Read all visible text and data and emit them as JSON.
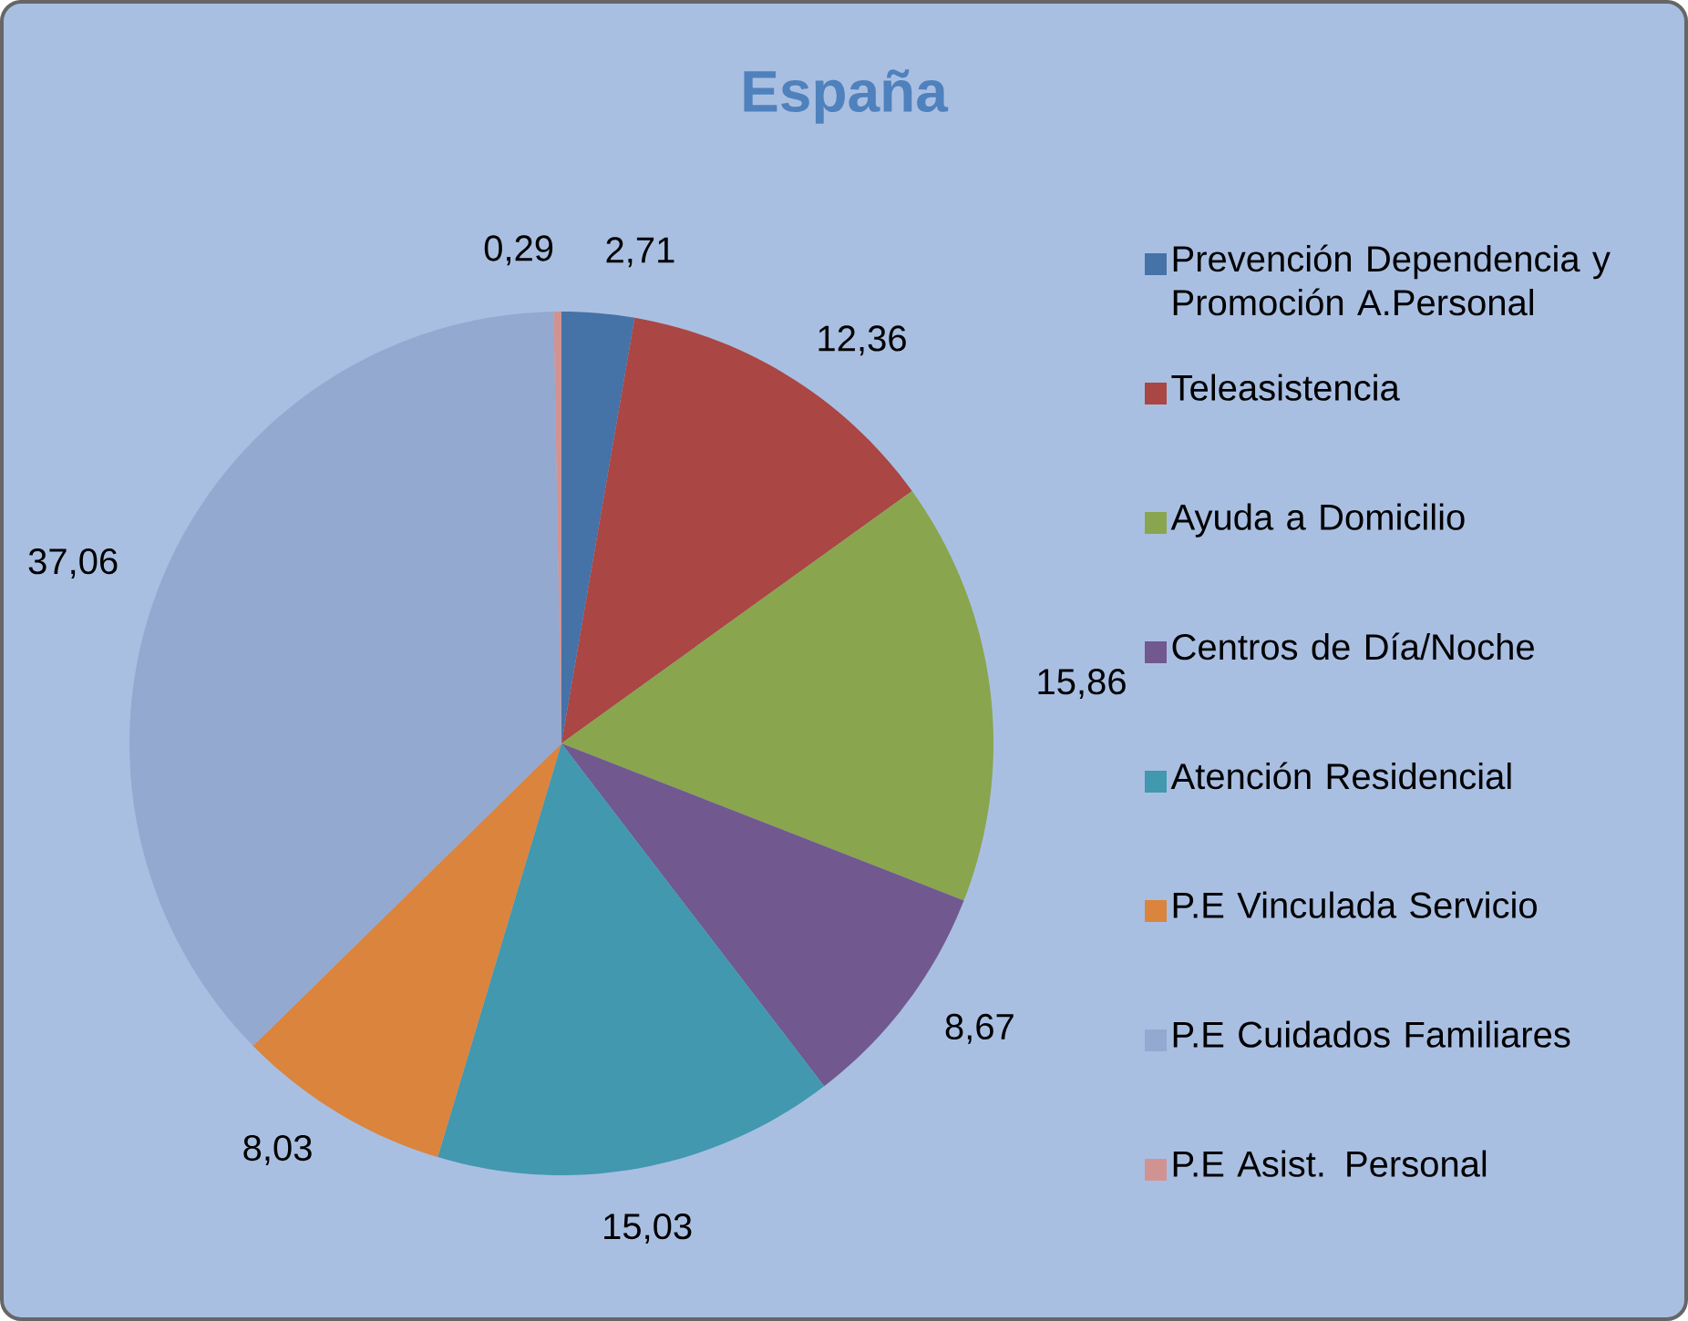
{
  "chart_data": {
    "type": "pie",
    "title": "España",
    "categories": [
      "Prevención Dependencia y Promoción A.Personal",
      "Teleasistencia",
      "Ayuda a Domicilio",
      "Centros de Día/Noche",
      "Atención Residencial",
      "P.E Vinculada Servicio",
      "P.E Cuidados  Familiares",
      "P.E Asist.    Personal"
    ],
    "values": [
      2.71,
      12.36,
      15.86,
      8.67,
      15.03,
      8.03,
      37.06,
      0.29
    ],
    "value_labels": [
      "2,71",
      "12,36",
      "15,86",
      "8,67",
      "15,03",
      "8,03",
      "37,06",
      "0,29"
    ],
    "colors": [
      "#4572a7",
      "#aa4643",
      "#89a54e",
      "#71588f",
      "#4198af",
      "#db843d",
      "#93a9cf",
      "#d19392"
    ],
    "legend": "right"
  }
}
